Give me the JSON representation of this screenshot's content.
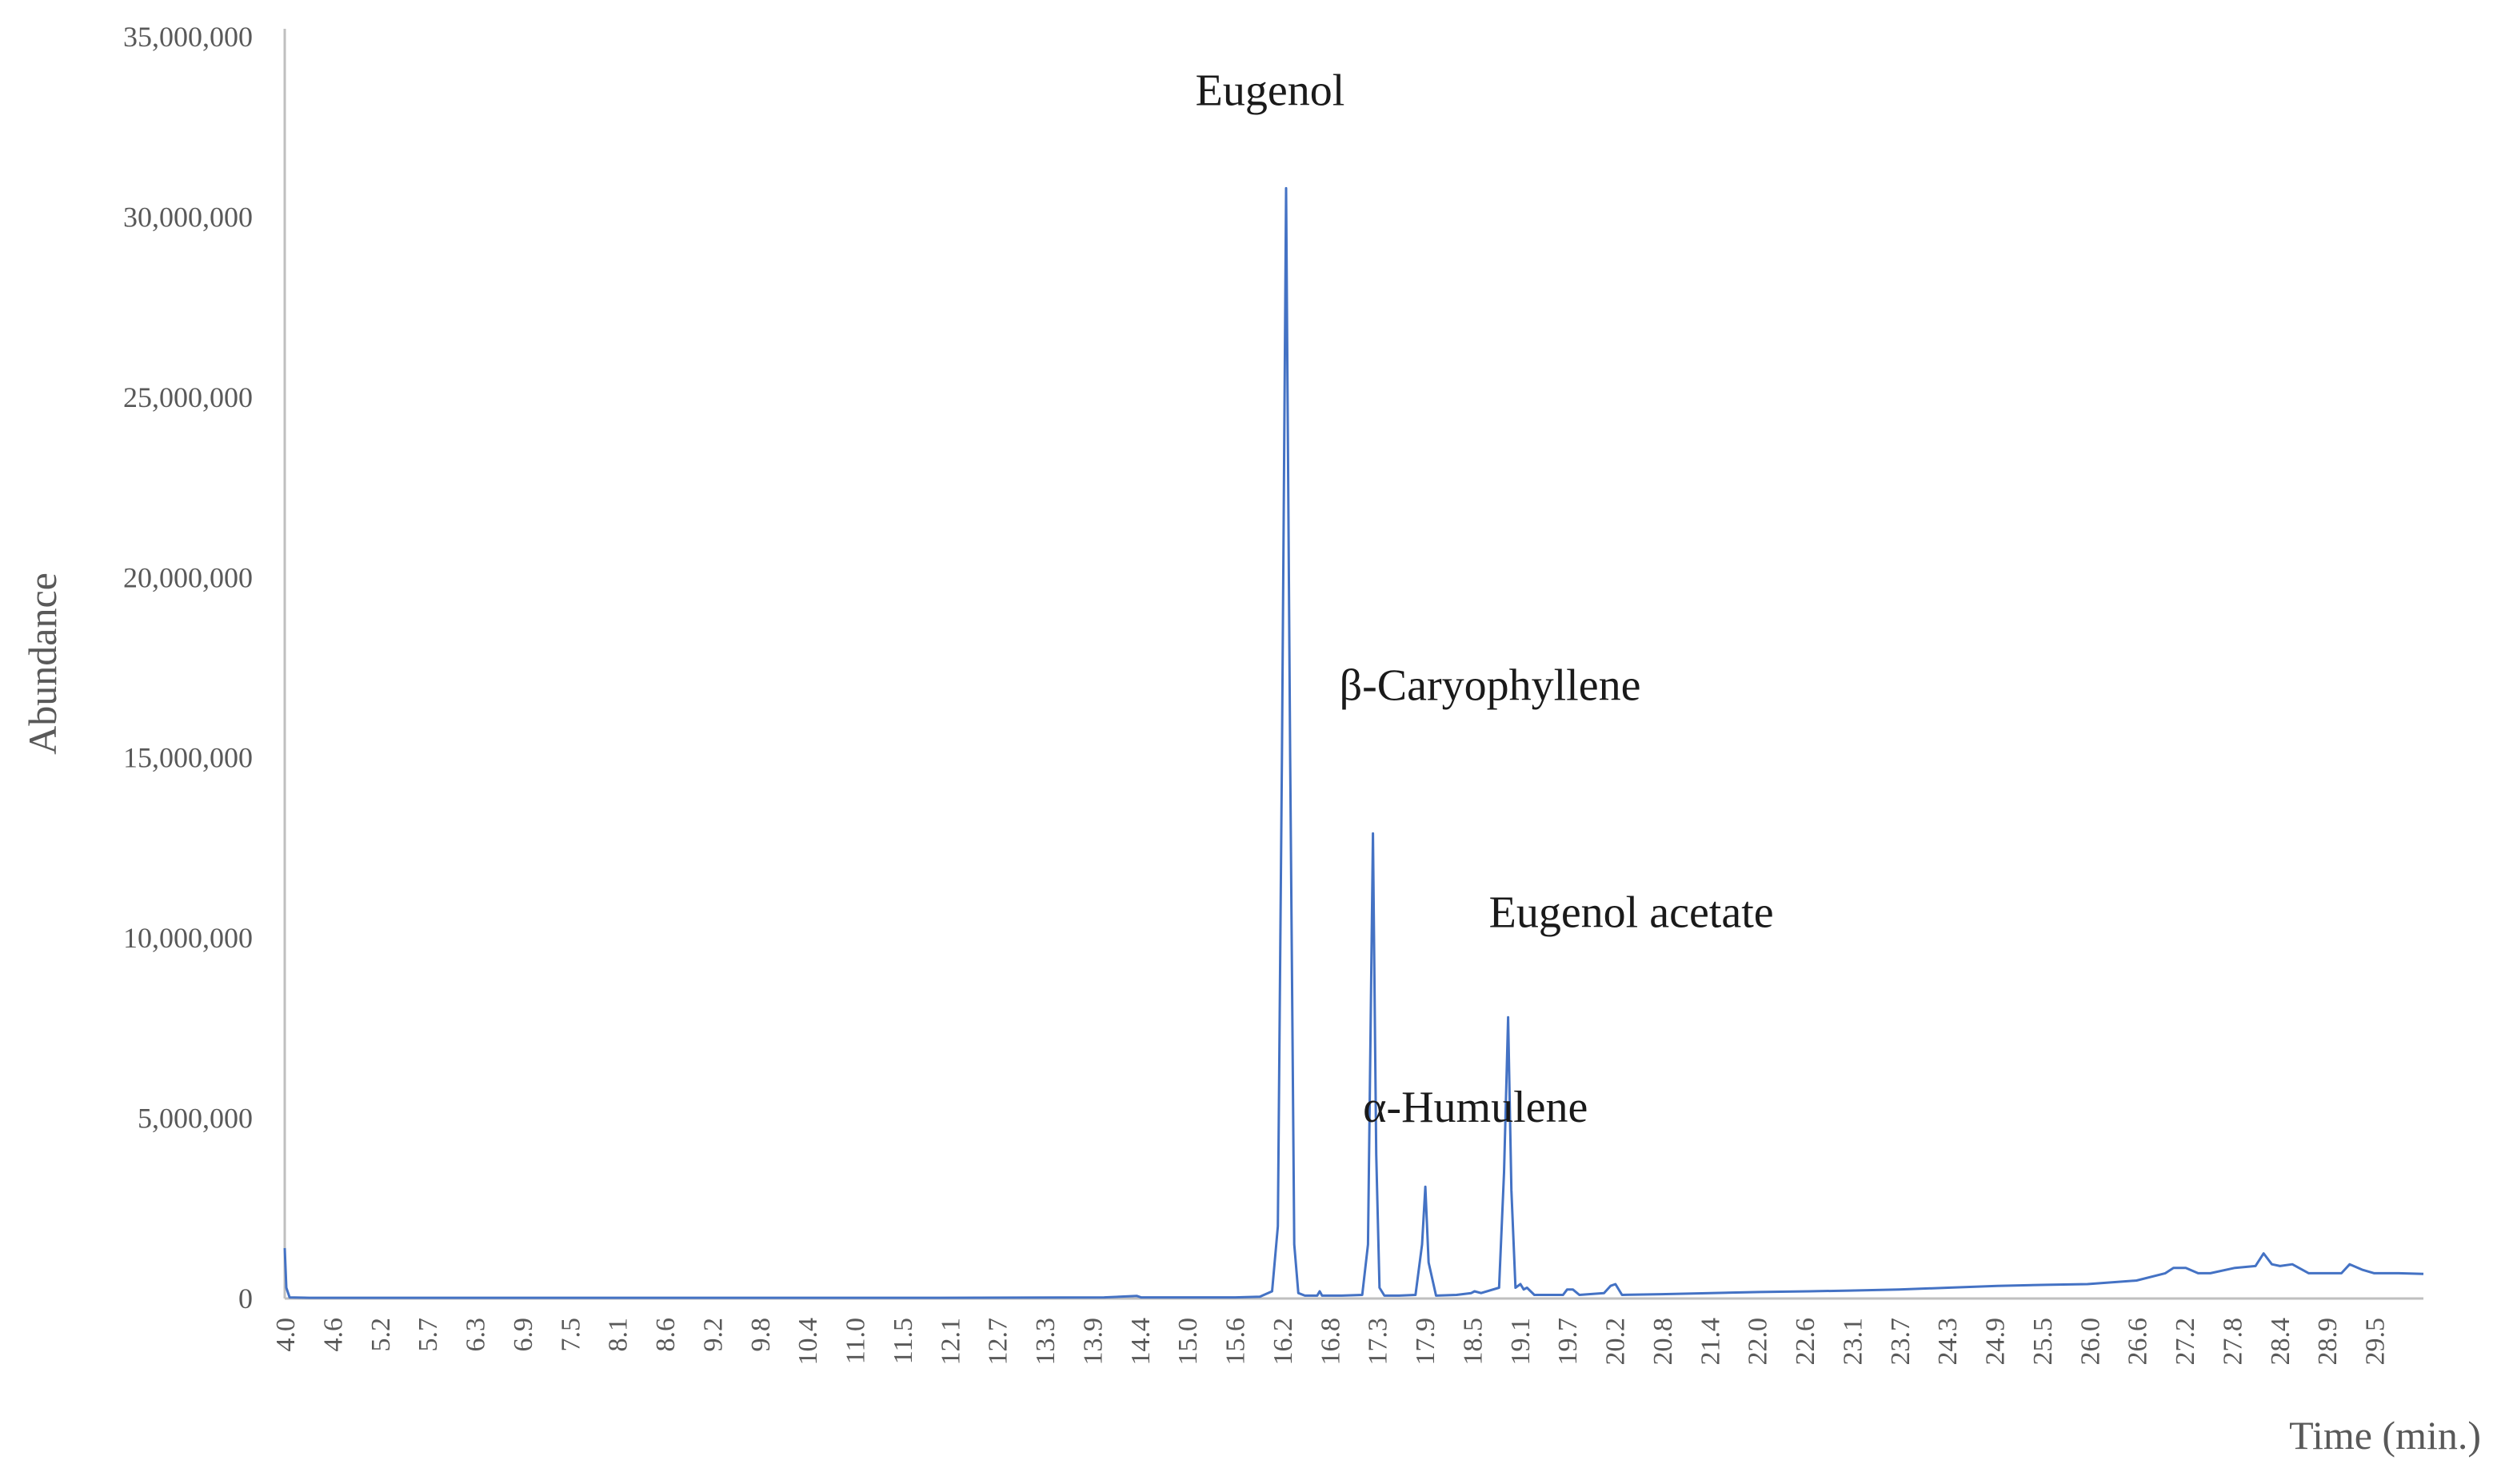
{
  "chart_data": {
    "type": "line",
    "ylabel": "Abundance",
    "xlabel": "Time (min.)",
    "ylim": [
      0,
      35000000
    ],
    "xlim": [
      4.0,
      30.1
    ],
    "grid": false,
    "yticks": [
      0,
      5000000,
      10000000,
      15000000,
      20000000,
      25000000,
      30000000,
      35000000
    ],
    "ytick_labels": [
      "0",
      "5,000,000",
      "10,000,000",
      "15,000,000",
      "20,000,000",
      "25,000,000",
      "30,000,000",
      "35,000,000"
    ],
    "xtick_labels": [
      "4.0",
      "4.6",
      "5.2",
      "5.7",
      "6.3",
      "6.9",
      "7.5",
      "8.1",
      "8.6",
      "9.2",
      "9.8",
      "10.4",
      "11.0",
      "11.5",
      "12.1",
      "12.7",
      "13.3",
      "13.9",
      "14.4",
      "15.0",
      "15.6",
      "16.2",
      "16.8",
      "17.3",
      "17.9",
      "18.5",
      "19.1",
      "19.7",
      "20.2",
      "20.8",
      "21.4",
      "22.0",
      "22.6",
      "23.1",
      "23.7",
      "24.3",
      "24.9",
      "25.5",
      "26.0",
      "26.6",
      "27.2",
      "27.8",
      "28.4",
      "28.9",
      "29.5"
    ],
    "series_color": "#4472c4",
    "series": [
      {
        "x": [
          4.0,
          4.02,
          4.06,
          4.3,
          6.0,
          8.0,
          10.0,
          12.0,
          14.0,
          14.4,
          14.45,
          14.5,
          15.0,
          15.6,
          15.9,
          16.05,
          16.12,
          16.17,
          16.22,
          16.27,
          16.32,
          16.37,
          16.45,
          16.6,
          16.63,
          16.66,
          16.9,
          17.15,
          17.22,
          17.28,
          17.32,
          17.36,
          17.42,
          17.6,
          17.8,
          17.88,
          17.92,
          17.96,
          18.05,
          18.3,
          18.48,
          18.52,
          18.6,
          18.82,
          18.88,
          18.93,
          18.97,
          19.02,
          19.08,
          19.12,
          19.16,
          19.25,
          19.6,
          19.65,
          19.72,
          19.8,
          20.1,
          20.18,
          20.24,
          20.32,
          20.8,
          21.4,
          22.0,
          22.6,
          23.1,
          23.7,
          24.3,
          24.9,
          25.5,
          26.0,
          26.6,
          26.95,
          27.05,
          27.2,
          27.35,
          27.5,
          27.8,
          28.05,
          28.15,
          28.25,
          28.35,
          28.5,
          28.7,
          28.9,
          29.1,
          29.2,
          29.35,
          29.5,
          29.8,
          30.1
        ],
        "y": [
          1400000,
          300000,
          30000,
          20000,
          20000,
          20000,
          20000,
          20000,
          30000,
          70000,
          30000,
          30000,
          30000,
          30000,
          50000,
          200000,
          2000000,
          15000000,
          30800000,
          15000000,
          1500000,
          150000,
          80000,
          80000,
          200000,
          80000,
          80000,
          100000,
          1500000,
          12900000,
          4000000,
          300000,
          80000,
          80000,
          100000,
          1500000,
          3100000,
          1000000,
          80000,
          100000,
          150000,
          200000,
          150000,
          300000,
          3500000,
          7800000,
          3000000,
          300000,
          400000,
          250000,
          300000,
          100000,
          100000,
          250000,
          250000,
          100000,
          150000,
          350000,
          400000,
          100000,
          120000,
          150000,
          180000,
          200000,
          220000,
          250000,
          300000,
          350000,
          380000,
          400000,
          500000,
          700000,
          850000,
          850000,
          700000,
          700000,
          850000,
          900000,
          1250000,
          950000,
          900000,
          950000,
          700000,
          700000,
          700000,
          950000,
          800000,
          700000,
          700000,
          680000
        ]
      }
    ],
    "annotations": [
      {
        "text": "Eugenol",
        "x": 16.22,
        "y": 33100000
      },
      {
        "text": "β-Caryophyllene",
        "x": 17.3,
        "y": 16600000
      },
      {
        "text": "Eugenol acetate",
        "x": 18.93,
        "y": 10300000
      },
      {
        "text": "α-Humulene",
        "x": 17.9,
        "y": 4900000
      }
    ]
  }
}
